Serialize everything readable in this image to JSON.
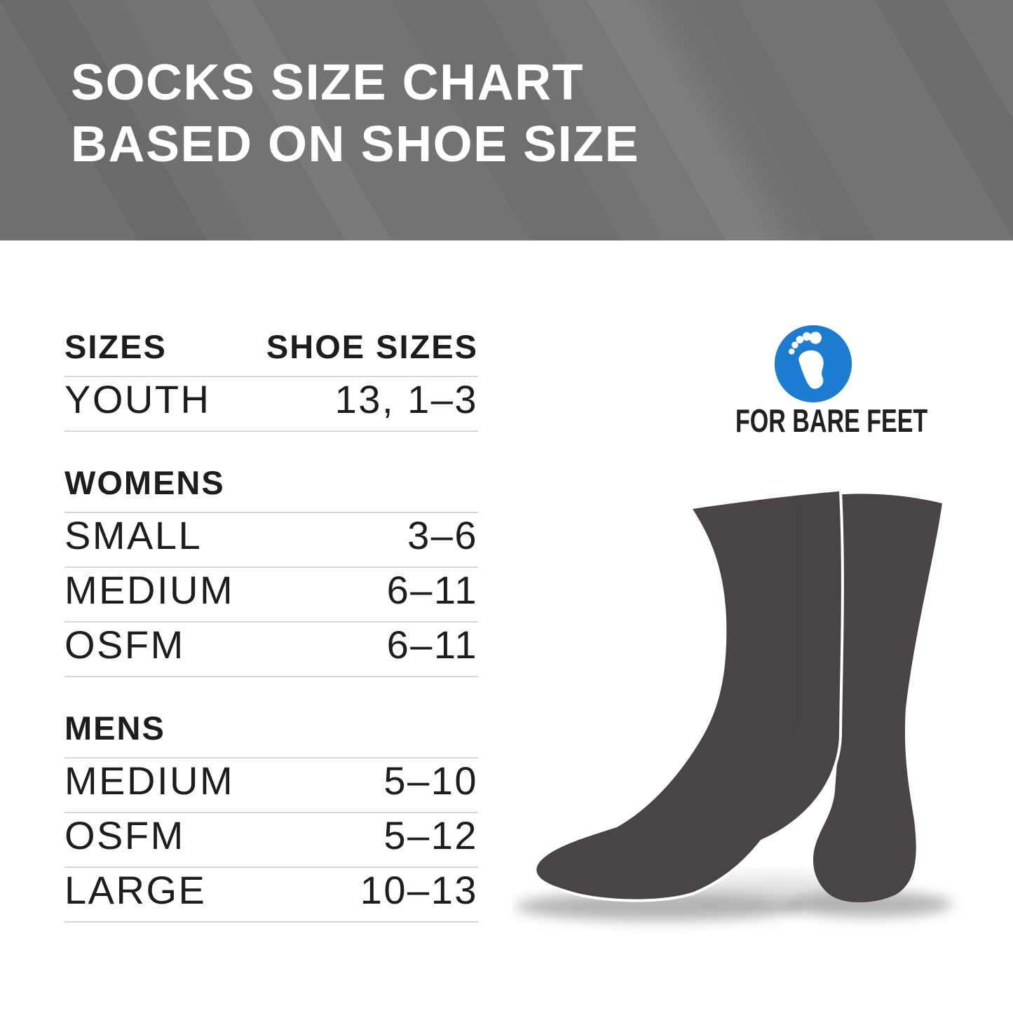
{
  "banner": {
    "title_line1": "SOCKS SIZE CHART",
    "title_line2": "BASED ON SHOE SIZE",
    "bg_color": "#737373",
    "text_color": "#ffffff"
  },
  "table": {
    "rows": [
      {
        "type": "header",
        "label": "SIZES",
        "value": "SHOE SIZES"
      },
      {
        "type": "data",
        "label": "YOUTH",
        "value": "13, 1–3"
      },
      {
        "type": "section",
        "label": "WOMENS"
      },
      {
        "type": "data",
        "label": "SMALL",
        "value": "3–6"
      },
      {
        "type": "data",
        "label": "MEDIUM",
        "value": "6–11"
      },
      {
        "type": "data",
        "label": "OSFM",
        "value": "6–11"
      },
      {
        "type": "section",
        "label": "MENS"
      },
      {
        "type": "data",
        "label": "MEDIUM",
        "value": "5–10"
      },
      {
        "type": "data",
        "label": "OSFM",
        "value": "5–12"
      },
      {
        "type": "data",
        "label": "LARGE",
        "value": "10–13"
      }
    ]
  },
  "logo": {
    "brand": "FOR BARE FEET",
    "icon": "footprint-icon",
    "circle_color": "#1b7cd1",
    "footprint_color": "#ffffff",
    "text_color": "#231f20"
  },
  "illustration": {
    "description": "two dark gray crew socks with soft floor shadows",
    "sock_color": "#4a4445"
  },
  "chart_data": {
    "type": "table",
    "title": "SOCKS SIZE CHART BASED ON SHOE SIZE",
    "columns": [
      "SIZES",
      "SHOE SIZES"
    ],
    "sections": [
      {
        "name": "",
        "rows": [
          [
            "YOUTH",
            "13, 1–3"
          ]
        ]
      },
      {
        "name": "WOMENS",
        "rows": [
          [
            "SMALL",
            "3–6"
          ],
          [
            "MEDIUM",
            "6–11"
          ],
          [
            "OSFM",
            "6–11"
          ]
        ]
      },
      {
        "name": "MENS",
        "rows": [
          [
            "MEDIUM",
            "5–10"
          ],
          [
            "OSFM",
            "5–12"
          ],
          [
            "LARGE",
            "10–13"
          ]
        ]
      }
    ]
  }
}
